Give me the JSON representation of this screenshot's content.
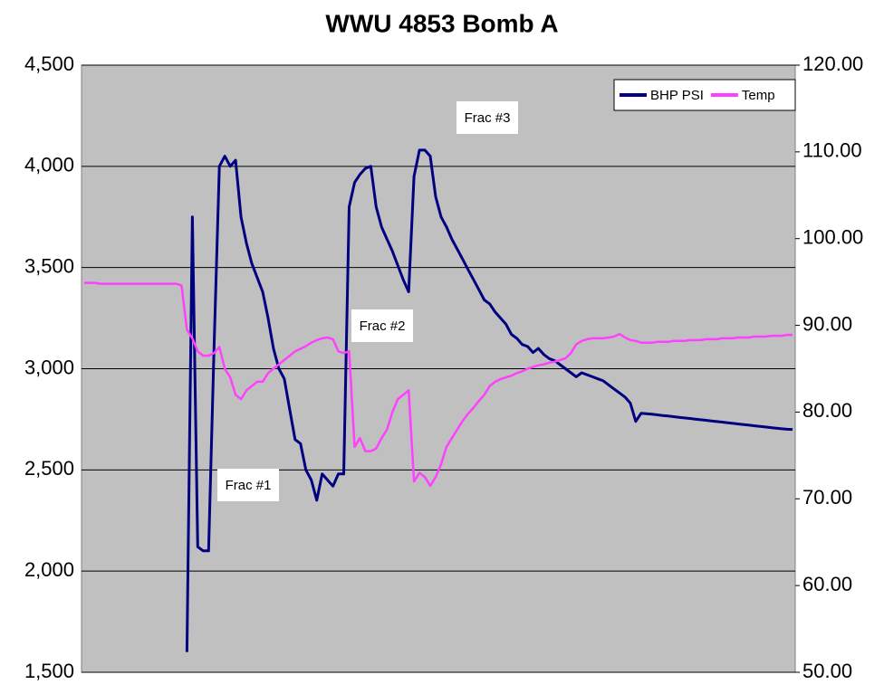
{
  "chart_data": {
    "type": "line",
    "title": "WWU 4853 Bomb A",
    "ylim": [
      1500,
      4500
    ],
    "yticks": [
      {
        "value": 1500,
        "label": "1,500"
      },
      {
        "value": 2000,
        "label": "2,000"
      },
      {
        "value": 2500,
        "label": "2,500"
      },
      {
        "value": 3000,
        "label": "3,000"
      },
      {
        "value": 3500,
        "label": "3,500"
      },
      {
        "value": 4000,
        "label": "4,000"
      },
      {
        "value": 4500,
        "label": "4,500"
      }
    ],
    "y2lim": [
      50,
      120
    ],
    "y2ticks": [
      {
        "value": 50,
        "label": "50.00"
      },
      {
        "value": 60,
        "label": "60.00"
      },
      {
        "value": 70,
        "label": "70.00"
      },
      {
        "value": 80,
        "label": "80.00"
      },
      {
        "value": 90,
        "label": "90.00"
      },
      {
        "value": 100,
        "label": "100.00"
      },
      {
        "value": 110,
        "label": "110.00"
      },
      {
        "value": 120,
        "label": "120.00"
      }
    ],
    "grid": true,
    "legend": "top-right",
    "annotations": [
      "Frac #1",
      "Frac #2",
      "Frac #3"
    ],
    "series": [
      {
        "name": "BHP PSI",
        "color": "#000080",
        "values": [
          null,
          null,
          null,
          null,
          null,
          null,
          null,
          null,
          null,
          null,
          null,
          null,
          null,
          null,
          null,
          null,
          null,
          null,
          null,
          1600,
          3750,
          2120,
          2100,
          2100,
          3100,
          4000,
          4050,
          4000,
          4030,
          3750,
          3620,
          3520,
          3450,
          3380,
          3250,
          3100,
          3000,
          2950,
          2800,
          2650,
          2630,
          2500,
          2450,
          2350,
          2480,
          2450,
          2420,
          2480,
          2480,
          3800,
          3920,
          3960,
          3990,
          4000,
          3800,
          3700,
          3640,
          3580,
          3510,
          3440,
          3380,
          3950,
          4080,
          4080,
          4050,
          3850,
          3750,
          3700,
          3640,
          3590,
          3540,
          3490,
          3440,
          3390,
          3340,
          3320,
          3280,
          3250,
          3220,
          3170,
          3150,
          3120,
          3110,
          3080,
          3100,
          3070,
          3050,
          3040,
          3020,
          3000,
          2980,
          2960,
          2980,
          2970,
          2960,
          2950,
          2940,
          2920,
          2900,
          2880,
          2860,
          2830,
          2740,
          2780,
          2778,
          2775,
          2772,
          2769,
          2766,
          2763,
          2760,
          2757,
          2754,
          2751,
          2748,
          2745,
          2742,
          2739,
          2736,
          2733,
          2730,
          2727,
          2724,
          2721,
          2718,
          2715,
          2712,
          2709,
          2706,
          2703,
          2701,
          2700
        ]
      },
      {
        "name": "Temp",
        "color": "#ff40ff",
        "axis": "y2",
        "values": [
          94.9,
          94.9,
          94.9,
          94.8,
          94.8,
          94.8,
          94.8,
          94.8,
          94.8,
          94.8,
          94.8,
          94.8,
          94.8,
          94.8,
          94.8,
          94.8,
          94.8,
          94.8,
          94.6,
          89.5,
          88.5,
          87,
          86.5,
          86.5,
          86.8,
          87.5,
          85,
          84,
          82,
          81.5,
          82.5,
          83,
          83.5,
          83.5,
          84.5,
          85,
          85.5,
          86,
          86.5,
          87,
          87.3,
          87.6,
          88,
          88.3,
          88.5,
          88.6,
          88.4,
          87,
          86.8,
          87,
          76,
          77,
          75.5,
          75.5,
          75.8,
          77,
          78,
          80,
          81.5,
          82,
          82.5,
          72,
          73,
          72.5,
          71.5,
          72.5,
          74,
          76,
          77,
          78,
          79,
          79.8,
          80.5,
          81.3,
          82,
          83,
          83.5,
          83.8,
          84,
          84.2,
          84.5,
          84.7,
          85,
          85.2,
          85.4,
          85.5,
          85.7,
          85.8,
          86,
          86.2,
          86.8,
          87.8,
          88.2,
          88.4,
          88.5,
          88.5,
          88.5,
          88.6,
          88.7,
          89,
          88.6,
          88.3,
          88.2,
          88,
          88.0,
          88.0,
          88.1,
          88.1,
          88.1,
          88.2,
          88.2,
          88.2,
          88.3,
          88.3,
          88.3,
          88.4,
          88.4,
          88.4,
          88.5,
          88.5,
          88.5,
          88.6,
          88.6,
          88.6,
          88.7,
          88.7,
          88.7,
          88.8,
          88.8,
          88.8,
          88.9,
          88.9
        ]
      }
    ]
  }
}
